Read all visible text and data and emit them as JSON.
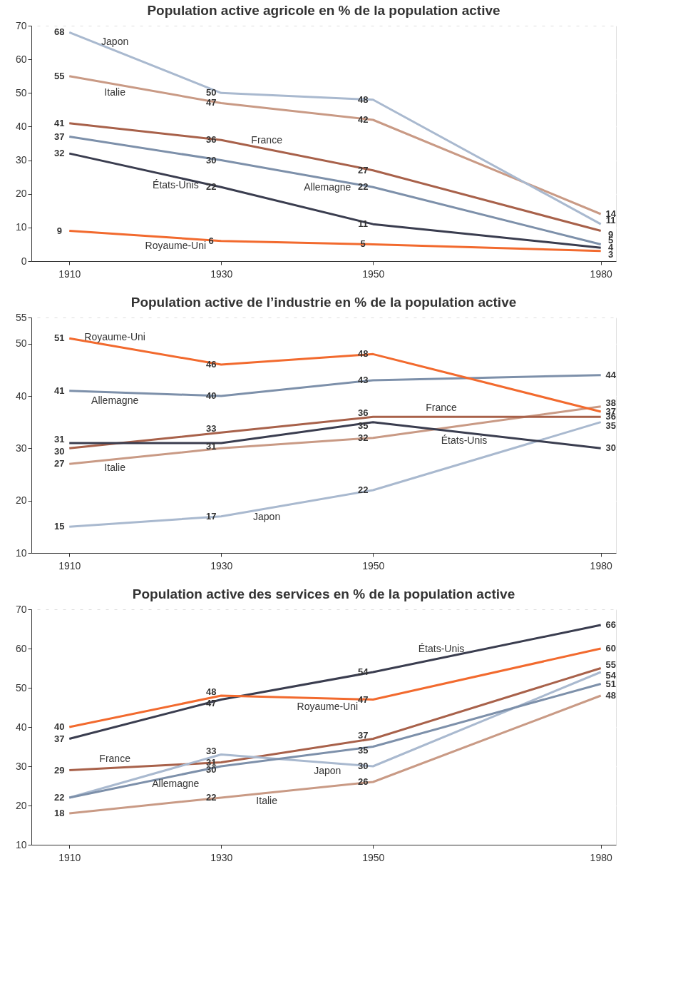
{
  "chart_data": [
    {
      "type": "line",
      "title": "Population active agricole en % de la population active",
      "x": [
        1910,
        1930,
        1950,
        1980
      ],
      "xlim": [
        1905,
        1982
      ],
      "xticks": [
        1910,
        1930,
        1950,
        1980
      ],
      "ylim": [
        0,
        70
      ],
      "yticks": [
        0,
        10,
        20,
        30,
        40,
        50,
        60,
        70
      ],
      "grid": "y",
      "legend": false,
      "data_labels": true,
      "line_style": "solid",
      "series": [
        {
          "name": "Italie",
          "color": "#c99a85",
          "values": [
            55,
            47,
            42,
            14
          ]
        },
        {
          "name": "Japon",
          "color": "#a9b9cf",
          "values": [
            68,
            50,
            48,
            11
          ]
        },
        {
          "name": "France",
          "color": "#a8614a",
          "values": [
            41,
            36,
            27,
            9
          ]
        },
        {
          "name": "Allemagne",
          "color": "#7d90aa",
          "values": [
            37,
            30,
            22,
            5
          ]
        },
        {
          "name": "États-Unis",
          "color": "#3a3d4f",
          "values": [
            32,
            22,
            11,
            4
          ]
        },
        {
          "name": "Royaume-Uni",
          "color": "#f26a2e",
          "values": [
            9,
            6,
            5,
            3
          ]
        }
      ]
    },
    {
      "type": "line",
      "title": "Population active de l’industrie en % de la population active",
      "x": [
        1910,
        1930,
        1950,
        1980
      ],
      "xlim": [
        1905,
        1982
      ],
      "xticks": [
        1910,
        1930,
        1950,
        1980
      ],
      "ylim": [
        10,
        55
      ],
      "yticks": [
        10,
        20,
        30,
        40,
        50,
        55
      ],
      "grid": "y",
      "legend": false,
      "line_style": "solid",
      "series": [
        {
          "name": "Allemagne",
          "color": "#7d90aa",
          "values": [
            41,
            40,
            43,
            44
          ],
          "value_labels": [
            "41",
            "40",
            "43",
            "44"
          ]
        },
        {
          "name": "Italie",
          "color": "#c99a85",
          "values": [
            27,
            30,
            32,
            38
          ],
          "value_labels": [
            "27",
            null,
            "32",
            "38"
          ]
        },
        {
          "name": "Royaume-Uni",
          "color": "#f26a2e",
          "values": [
            51,
            46,
            48,
            37
          ],
          "value_labels": [
            "51",
            "46",
            "48",
            "37"
          ]
        },
        {
          "name": "France",
          "color": "#a8614a",
          "values": [
            30,
            33,
            36,
            36
          ],
          "value_labels": [
            "30",
            "33",
            "36",
            "36"
          ]
        },
        {
          "name": "Japon",
          "color": "#a9b9cf",
          "values": [
            15,
            17,
            22,
            35
          ],
          "value_labels": [
            "15",
            "17",
            "22",
            "35"
          ]
        },
        {
          "name": "États-Unis",
          "color": "#3a3d4f",
          "values": [
            31,
            31,
            35,
            30
          ],
          "value_labels": [
            "31",
            "31",
            "35",
            "30"
          ]
        }
      ]
    },
    {
      "type": "line",
      "title": "Population active des services en % de la population active",
      "x": [
        1910,
        1930,
        1950,
        1980
      ],
      "xlim": [
        1905,
        1982
      ],
      "xticks": [
        1910,
        1930,
        1950,
        1980
      ],
      "ylim": [
        10,
        70
      ],
      "yticks": [
        10,
        20,
        30,
        40,
        50,
        60,
        70
      ],
      "grid": "y",
      "legend": false,
      "line_style": "solid",
      "series": [
        {
          "name": "États-Unis",
          "color": "#3a3d4f",
          "values": [
            37,
            47,
            54,
            66
          ],
          "value_labels": [
            "37",
            "47",
            "54",
            "66"
          ]
        },
        {
          "name": "Royaume-Uni",
          "color": "#f26a2e",
          "values": [
            40,
            48,
            47,
            60
          ],
          "value_labels": [
            "40",
            "48",
            "47",
            "60"
          ]
        },
        {
          "name": "France",
          "color": "#a8614a",
          "values": [
            29,
            31,
            37,
            55
          ],
          "value_labels": [
            "29",
            "31",
            "37",
            "55"
          ]
        },
        {
          "name": "Japon",
          "color": "#a9b9cf",
          "values": [
            22,
            33,
            30,
            54
          ],
          "value_labels": [
            "22",
            "33",
            "30",
            "54"
          ]
        },
        {
          "name": "Allemagne",
          "color": "#7d90aa",
          "values": [
            22,
            30,
            35,
            51
          ],
          "value_labels": [
            null,
            "30",
            "35",
            "51"
          ]
        },
        {
          "name": "Italie",
          "color": "#c99a85",
          "values": [
            18,
            22,
            26,
            48
          ],
          "value_labels": [
            "18",
            "22",
            "26",
            "48"
          ]
        }
      ]
    }
  ]
}
